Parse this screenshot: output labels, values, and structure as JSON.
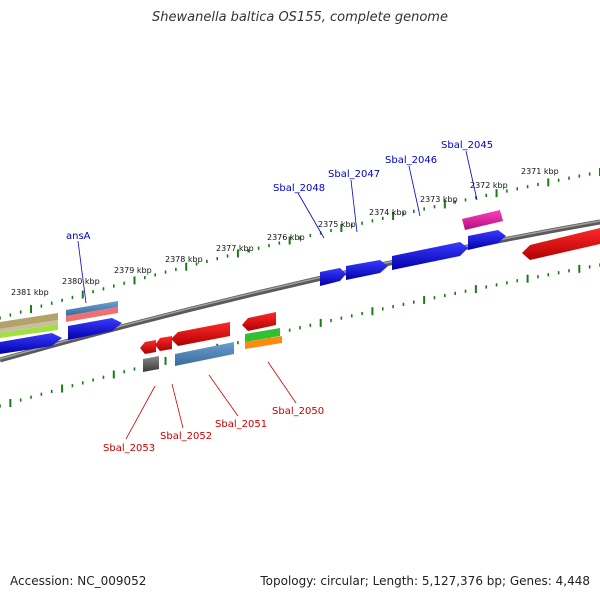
{
  "title": "Shewanella baltica OS155, complete genome",
  "footer": {
    "accession": "Accession: NC_009052",
    "summary": "Topology: circular; Length: 5,127,376 bp; Genes: 4,448"
  },
  "colors": {
    "forward_label": "#0000cc",
    "reverse_label": "#cc0000",
    "tick": "#1a7a1a",
    "backbone": "#7a7a7a"
  },
  "scale_labels": [
    "2381 kbp",
    "2380 kbp",
    "2379 kbp",
    "2378 kbp",
    "2377 kbp",
    "2376 kbp",
    "2375 kbp",
    "2374 kbp",
    "2373 kbp",
    "2372 kbp",
    "2371 kbp"
  ],
  "forward_genes": [
    "ansA",
    "Sbal_2048",
    "Sbal_2047",
    "Sbal_2046",
    "Sbal_2045"
  ],
  "reverse_genes": [
    "Sbal_2053",
    "Sbal_2052",
    "Sbal_2051",
    "Sbal_2050"
  ]
}
